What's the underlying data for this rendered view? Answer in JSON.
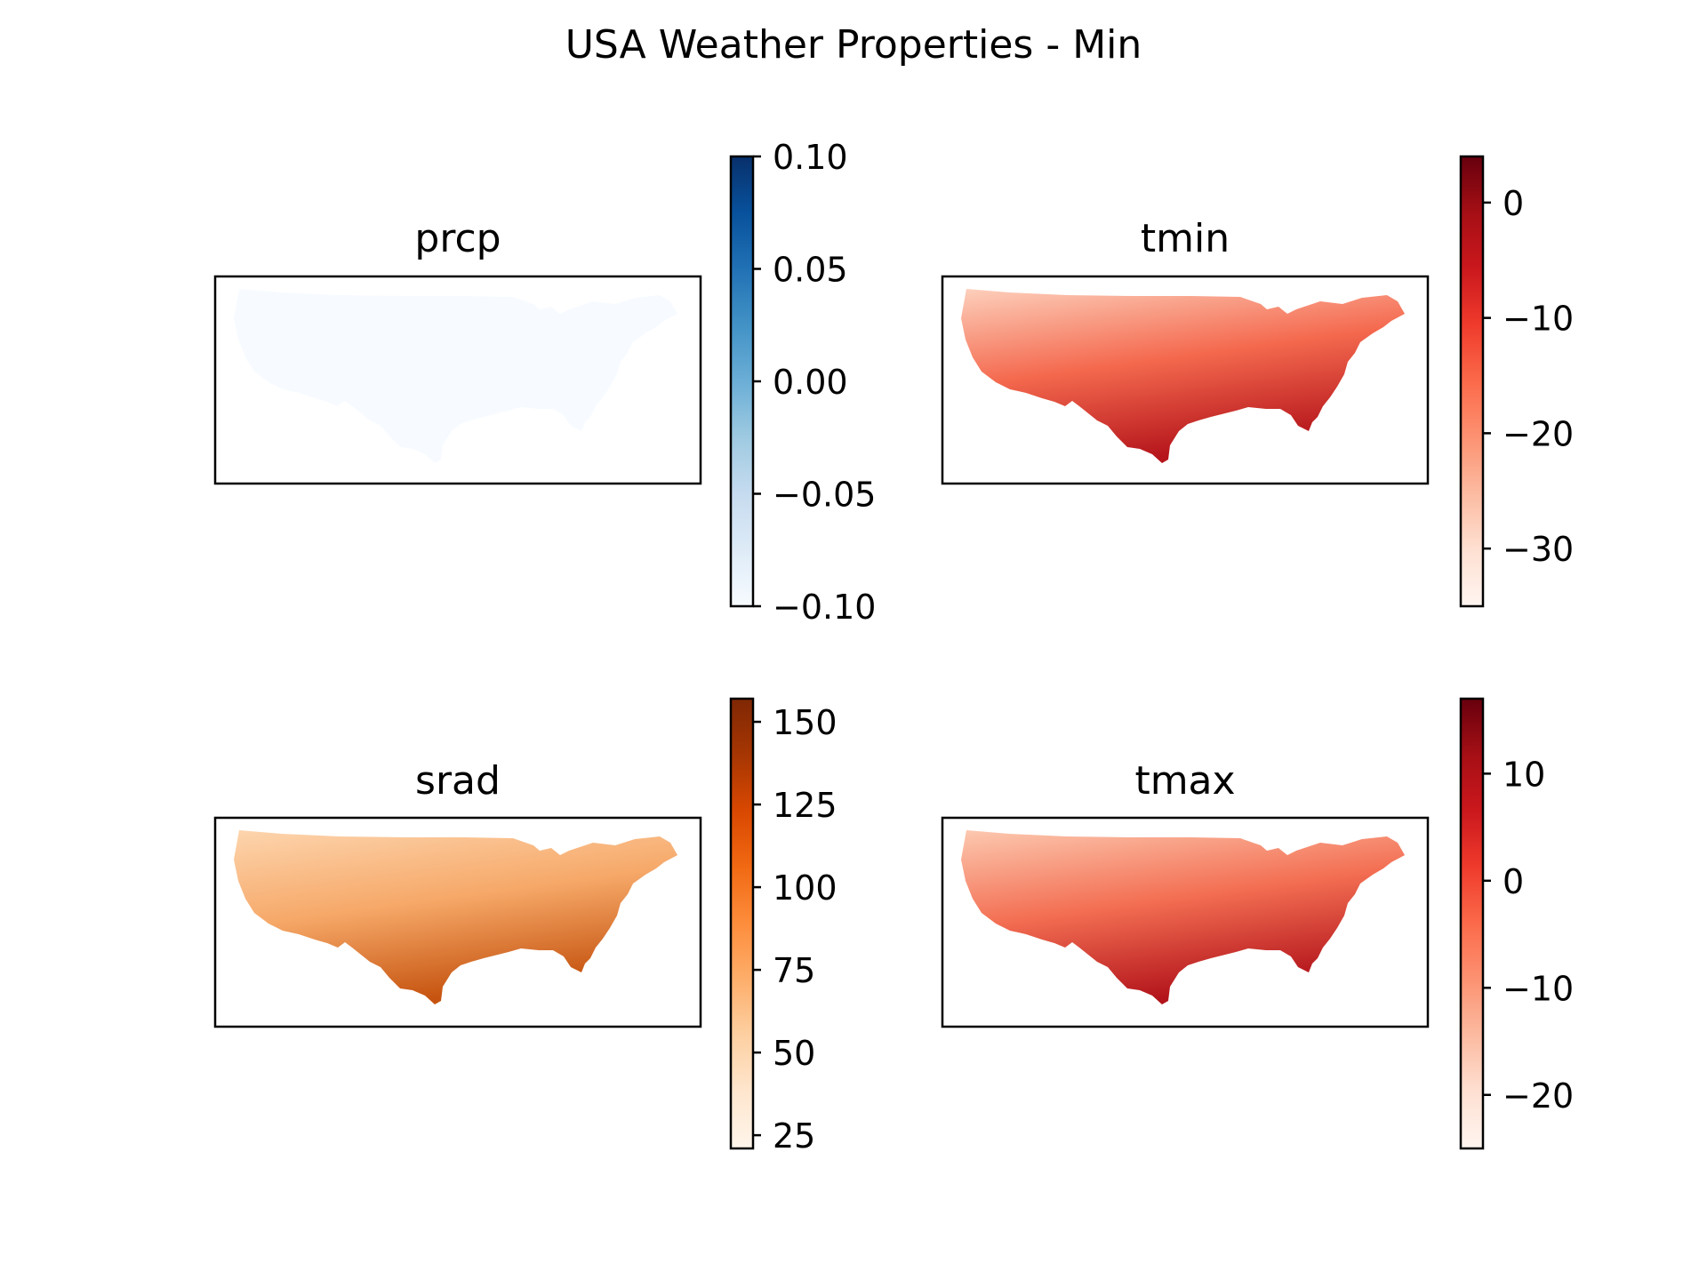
{
  "figure": {
    "title": "USA Weather Properties - Min"
  },
  "panels": [
    {
      "id": "prcp",
      "title": "prcp",
      "colormap": "Blues",
      "colors": [
        "#f7fbff",
        "#deebf7",
        "#c6dbef",
        "#9ecae1",
        "#6baed6",
        "#4292c6",
        "#2171b5",
        "#08519c",
        "#08306b"
      ],
      "vmin": -0.1,
      "vmax": 0.1,
      "ticks": [
        -0.1,
        -0.05,
        0.0,
        0.05,
        0.1
      ],
      "tick_labels": [
        "−0.10",
        "−0.05",
        "0.00",
        "0.05",
        "0.10"
      ],
      "map_gradient": [
        "#f7fbff",
        "#f7fbff",
        "#f7fbff"
      ]
    },
    {
      "id": "tmin",
      "title": "tmin",
      "colormap": "Reds",
      "colors": [
        "#fff5f0",
        "#fee0d2",
        "#fcbba1",
        "#fc9272",
        "#fb6a4a",
        "#ef3b2c",
        "#cb181d",
        "#a50f15",
        "#67000d"
      ],
      "vmin": -35,
      "vmax": 4,
      "ticks": [
        -30,
        -20,
        -10,
        0
      ],
      "tick_labels": [
        "−30",
        "−20",
        "−10",
        "0"
      ],
      "map_gradient": [
        "#fdd0bc",
        "#f4694e",
        "#b5151b"
      ]
    },
    {
      "id": "srad",
      "title": "srad",
      "colormap": "Oranges",
      "colors": [
        "#fff5eb",
        "#fee6ce",
        "#fdd0a2",
        "#fdae6b",
        "#fd8d3c",
        "#f16913",
        "#d94801",
        "#a63603",
        "#7f2704"
      ],
      "vmin": 21,
      "vmax": 157,
      "ticks": [
        25,
        50,
        75,
        100,
        125,
        150
      ],
      "tick_labels": [
        "25",
        "50",
        "75",
        "100",
        "125",
        "150"
      ],
      "map_gradient": [
        "#fdd5ae",
        "#f6a868",
        "#c65410"
      ]
    },
    {
      "id": "tmax",
      "title": "tmax",
      "colormap": "Reds",
      "colors": [
        "#fff5f0",
        "#fee0d2",
        "#fcbba1",
        "#fc9272",
        "#fb6a4a",
        "#ef3b2c",
        "#cb181d",
        "#a50f15",
        "#67000d"
      ],
      "vmin": -25,
      "vmax": 17,
      "ticks": [
        -20,
        -10,
        0,
        10
      ],
      "tick_labels": [
        "−20",
        "−10",
        "0",
        "10"
      ],
      "map_gradient": [
        "#fcc9b0",
        "#f36e52",
        "#b3141b"
      ]
    }
  ]
}
